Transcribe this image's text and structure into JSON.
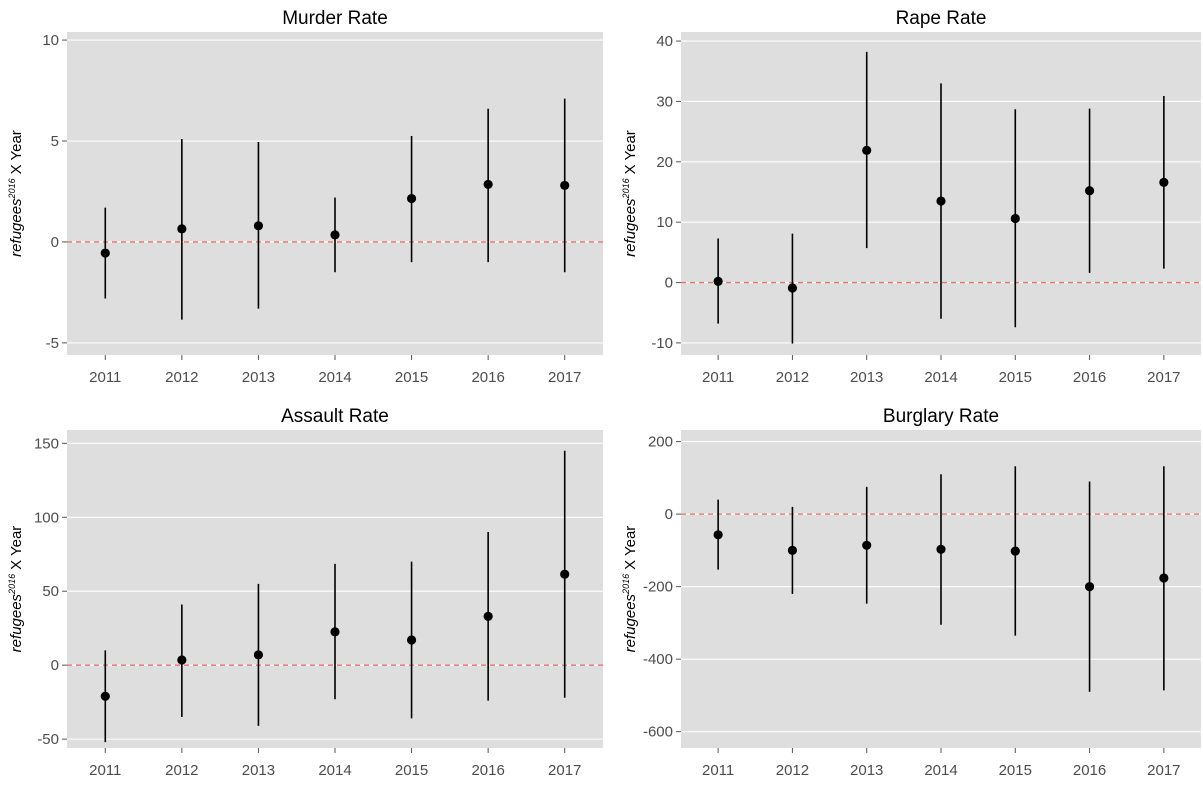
{
  "chart_data": [
    {
      "type": "errorbar",
      "title": "Murder Rate",
      "ylabel": {
        "base": "refugees",
        "sup": "2016",
        "suffix": "X Year"
      },
      "categories": [
        "2011",
        "2012",
        "2013",
        "2014",
        "2015",
        "2016",
        "2017"
      ],
      "estimates": [
        -0.55,
        0.65,
        0.8,
        0.35,
        2.15,
        2.85,
        2.8
      ],
      "ci_low": [
        -2.8,
        -3.85,
        -3.3,
        -1.5,
        -1.0,
        -1.0,
        -1.5
      ],
      "ci_high": [
        1.7,
        5.1,
        4.95,
        2.2,
        5.25,
        6.6,
        7.1
      ],
      "yticks": [
        -5,
        0,
        5,
        10
      ],
      "ytick_labels": [
        "-5",
        "0",
        "5",
        "10"
      ],
      "ylim": [
        -5.6,
        10.4
      ],
      "reference_line": 0
    },
    {
      "type": "errorbar",
      "title": "Rape Rate",
      "ylabel": {
        "base": "refugees",
        "sup": "2016",
        "suffix": "X Year"
      },
      "categories": [
        "2011",
        "2012",
        "2013",
        "2014",
        "2015",
        "2016",
        "2017"
      ],
      "estimates": [
        0.2,
        -0.9,
        21.9,
        13.5,
        10.6,
        15.2,
        16.6
      ],
      "ci_low": [
        -6.8,
        -10.1,
        5.7,
        -6.0,
        -7.4,
        1.6,
        2.3
      ],
      "ci_high": [
        7.3,
        8.1,
        38.2,
        33.0,
        28.7,
        28.8,
        30.9
      ],
      "yticks": [
        -10,
        0,
        10,
        20,
        30,
        40
      ],
      "ytick_labels": [
        "-10",
        "0",
        "10",
        "20",
        "30",
        "40"
      ],
      "ylim": [
        -12,
        41.5
      ],
      "reference_line": 0
    },
    {
      "type": "errorbar",
      "title": "Assault Rate",
      "ylabel": {
        "base": "refugees",
        "sup": "2016",
        "suffix": "X Year"
      },
      "categories": [
        "2011",
        "2012",
        "2013",
        "2014",
        "2015",
        "2016",
        "2017"
      ],
      "estimates": [
        -21,
        3.5,
        7,
        22.5,
        17,
        33,
        61.5
      ],
      "ci_low": [
        -52,
        -35,
        -41,
        -23,
        -36,
        -24,
        -22
      ],
      "ci_high": [
        10,
        41,
        55,
        68.5,
        70,
        90,
        145
      ],
      "yticks": [
        -50,
        0,
        50,
        100,
        150
      ],
      "ytick_labels": [
        "-50",
        "0",
        "50",
        "100",
        "150"
      ],
      "ylim": [
        -56,
        159
      ],
      "reference_line": 0
    },
    {
      "type": "errorbar",
      "title": "Burglary Rate",
      "ylabel": {
        "base": "refugees",
        "sup": "2016",
        "suffix": "X Year"
      },
      "categories": [
        "2011",
        "2012",
        "2013",
        "2014",
        "2015",
        "2016",
        "2017"
      ],
      "estimates": [
        -57,
        -100,
        -86,
        -97,
        -102,
        -200,
        -176
      ],
      "ci_low": [
        -153,
        -220,
        -247,
        -305,
        -335,
        -490,
        -486
      ],
      "ci_high": [
        40,
        20,
        75,
        110,
        132,
        90,
        132
      ],
      "yticks": [
        -600,
        -400,
        -200,
        0,
        200
      ],
      "ytick_labels": [
        "-600",
        "-400",
        "-200",
        "0",
        "200"
      ],
      "ylim": [
        -645,
        232
      ],
      "reference_line": 0
    }
  ],
  "colors": {
    "panel_background": "#dedede",
    "grid": "#ffffff",
    "point": "#000000",
    "errorbar": "#000000",
    "reference_line": "#e8736c",
    "tick_text": "#4d4d4d",
    "title_text": "#000000"
  }
}
